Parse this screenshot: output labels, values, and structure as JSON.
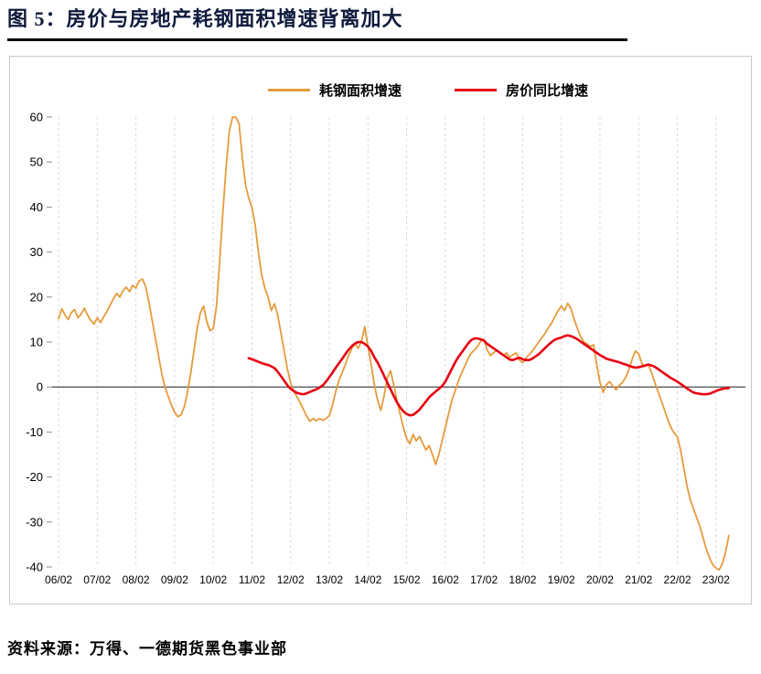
{
  "page": {
    "title": "图 5：房价与房地产耗钢面积增速背离加大",
    "source": "资料来源：万得、一德期货黑色事业部"
  },
  "legend": [
    {
      "label": "耗钢面积增速",
      "color": "#E59B3C"
    },
    {
      "label": "房价同比增速",
      "color": "#E60012"
    }
  ],
  "chart_data": {
    "type": "line",
    "title": "房价与房地产耗钢面积增速背离加大",
    "x_tick_labels": [
      "06/02",
      "07/02",
      "08/02",
      "09/02",
      "10/02",
      "11/02",
      "12/02",
      "13/02",
      "14/02",
      "15/02",
      "16/02",
      "17/02",
      "18/02",
      "19/02",
      "20/02",
      "21/02",
      "22/02",
      "23/02"
    ],
    "x_months_per_tick": 12,
    "x_start_label_month": "2006-02",
    "ylim": [
      -40,
      60
    ],
    "y_ticks": [
      60,
      50,
      40,
      30,
      20,
      10,
      0,
      -10,
      -20,
      -30,
      -40
    ],
    "grid": "vertical-dashed",
    "zero_line": true,
    "legend_position": "top-center",
    "colors": {
      "grid": "#d9d9d9",
      "zero_line": "#5a5a5a",
      "axis_text": "#000000"
    },
    "series": [
      {
        "name": "耗钢面积增速",
        "color": "#E59B3C",
        "width": 1.8,
        "start_month": "2006-02",
        "start_offset_months": 0,
        "values": [
          15.2,
          17.4,
          16,
          15,
          16.6,
          17.2,
          15.4,
          16.2,
          17.5,
          16,
          14.8,
          14,
          15.4,
          14.3,
          15.6,
          16.8,
          18.2,
          19.6,
          20.8,
          20,
          21.4,
          22.2,
          21.2,
          22.6,
          22,
          23.6,
          24,
          22.4,
          19,
          15,
          11,
          7,
          3,
          0,
          -2,
          -4,
          -5.6,
          -6.6,
          -6.2,
          -4.4,
          -1.2,
          3,
          8,
          13,
          16.5,
          18,
          14.5,
          12.5,
          13,
          18,
          28,
          39,
          49,
          57,
          60,
          60,
          58.5,
          51,
          45,
          42,
          40,
          36,
          30,
          25,
          22,
          20,
          17,
          18.5,
          16,
          12,
          8,
          4,
          1,
          -1,
          -2.2,
          -3.5,
          -5,
          -6.5,
          -7.6,
          -7,
          -7.5,
          -7,
          -7.4,
          -7,
          -6.4,
          -4,
          -1,
          1.5,
          3.2,
          5,
          7,
          8.6,
          9.6,
          8.6,
          10.2,
          13.4,
          9,
          5,
          0.5,
          -3,
          -5.2,
          -2,
          2,
          3.6,
          0.5,
          -3,
          -6,
          -9,
          -11.5,
          -12.6,
          -10.5,
          -12,
          -11,
          -12.5,
          -14,
          -13,
          -15,
          -17.2,
          -15,
          -12,
          -9,
          -6,
          -3,
          -1,
          1.2,
          3,
          4.6,
          6.2,
          7.5,
          8.2,
          9,
          10.2,
          10.6,
          8.2,
          7,
          7.6,
          8.2,
          7.6,
          7,
          7.6,
          6.6,
          7.2,
          7.6,
          6,
          5.4,
          6.4,
          7.2,
          8,
          9,
          10,
          11,
          12,
          13.2,
          14.2,
          15.6,
          17,
          18,
          17,
          18.6,
          17.4,
          15,
          13,
          11.2,
          10,
          9.6,
          9,
          9.4,
          5,
          1,
          -1.2,
          0.5,
          1.2,
          0.2,
          -0.6,
          0.4,
          1,
          2.2,
          4,
          6.2,
          8,
          7.4,
          5.2,
          4.6,
          5,
          3.2,
          1,
          -1,
          -3,
          -5,
          -7.2,
          -9,
          -10.2,
          -11,
          -14,
          -18,
          -22,
          -25,
          -27,
          -29,
          -31,
          -33.5,
          -36,
          -38,
          -39.5,
          -40.2,
          -40.6,
          -39.2,
          -36.5,
          -33
        ]
      },
      {
        "name": "房价同比增速",
        "color": "#E60012",
        "width": 2.6,
        "start_month": "2011-01",
        "start_offset_months": 59,
        "values": [
          6.4,
          6.2,
          5.9,
          5.6,
          5.3,
          5.1,
          4.9,
          4.6,
          4.2,
          3.4,
          2.4,
          1.4,
          0.4,
          -0.4,
          -0.9,
          -1.3,
          -1.5,
          -1.6,
          -1.4,
          -1.1,
          -0.8,
          -0.5,
          -0.1,
          0.4,
          1.2,
          2.2,
          3.2,
          4.3,
          5.3,
          6.3,
          7.3,
          8.3,
          9.1,
          9.7,
          10,
          10,
          9.6,
          9,
          8,
          6.6,
          5.4,
          4,
          2.5,
          1,
          -0.5,
          -2,
          -3.4,
          -4.5,
          -5.4,
          -6,
          -6.3,
          -6.2,
          -5.7,
          -5,
          -4.1,
          -3.2,
          -2.3,
          -1.6,
          -1,
          -0.4,
          0.2,
          1.2,
          2.6,
          4,
          5.4,
          6.6,
          7.6,
          8.6,
          9.6,
          10.4,
          10.8,
          10.8,
          10.6,
          10.3,
          9.6,
          9.1,
          8.6,
          8.1,
          7.6,
          7.1,
          6.6,
          6.1,
          6,
          6.3,
          6.5,
          6.2,
          6,
          6,
          6.3,
          6.8,
          7.3,
          8,
          8.7,
          9.4,
          10,
          10.5,
          10.8,
          11,
          11.3,
          11.5,
          11.3,
          11,
          10.6,
          10.1,
          9.6,
          9.1,
          8.6,
          8.1,
          7.6,
          7.1,
          6.7,
          6.3,
          6.1,
          5.9,
          5.7,
          5.5,
          5.2,
          5,
          4.7,
          4.5,
          4.3,
          4.4,
          4.6,
          4.8,
          5,
          4.8,
          4.5,
          4,
          3.5,
          3,
          2.5,
          2,
          1.6,
          1.2,
          0.7,
          0.2,
          -0.3,
          -0.8,
          -1.2,
          -1.4,
          -1.5,
          -1.6,
          -1.6,
          -1.5,
          -1.2,
          -0.9,
          -0.6,
          -0.4,
          -0.3,
          -0.2
        ]
      }
    ]
  }
}
